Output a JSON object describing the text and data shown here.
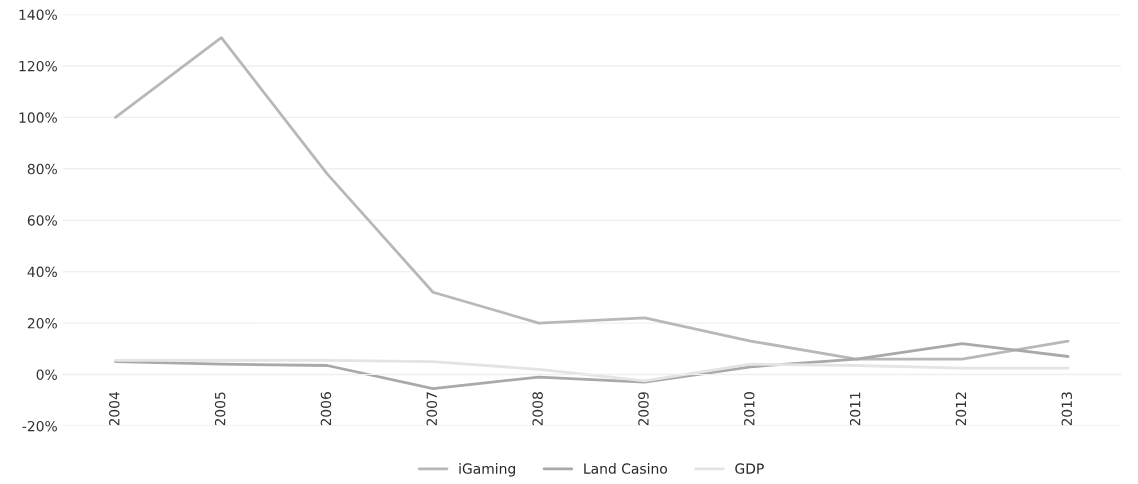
{
  "chart_data": {
    "type": "line",
    "categories": [
      "2004",
      "2005",
      "2006",
      "2007",
      "2008",
      "2009",
      "2010",
      "2011",
      "2012",
      "2013"
    ],
    "series": [
      {
        "name": "iGaming",
        "color": "#b8b8b8",
        "values": [
          100,
          131,
          78,
          32,
          20,
          22,
          13,
          6,
          6,
          13
        ]
      },
      {
        "name": "Land Casino",
        "color": "#a9a9a9",
        "values": [
          5,
          4,
          3.5,
          -5.5,
          -1,
          -3,
          3,
          6,
          12,
          7
        ]
      },
      {
        "name": "GDP",
        "color": "#e4e4e4",
        "values": [
          5.5,
          5.5,
          5.5,
          5,
          2,
          -2.5,
          4,
          3.5,
          2.5,
          2.5
        ]
      }
    ],
    "ylim": [
      -20,
      140
    ],
    "yticks": [
      {
        "value": -20,
        "label": "-20%"
      },
      {
        "value": 0,
        "label": "0%"
      },
      {
        "value": 20,
        "label": "20%"
      },
      {
        "value": 40,
        "label": "40%"
      },
      {
        "value": 60,
        "label": "60%"
      },
      {
        "value": 80,
        "label": "80%"
      },
      {
        "value": 100,
        "label": "100%"
      },
      {
        "value": 120,
        "label": "120%"
      },
      {
        "value": 140,
        "label": "140%"
      }
    ],
    "grid": "y",
    "legend": "bottom",
    "marker": "none",
    "line_style": "solid"
  }
}
